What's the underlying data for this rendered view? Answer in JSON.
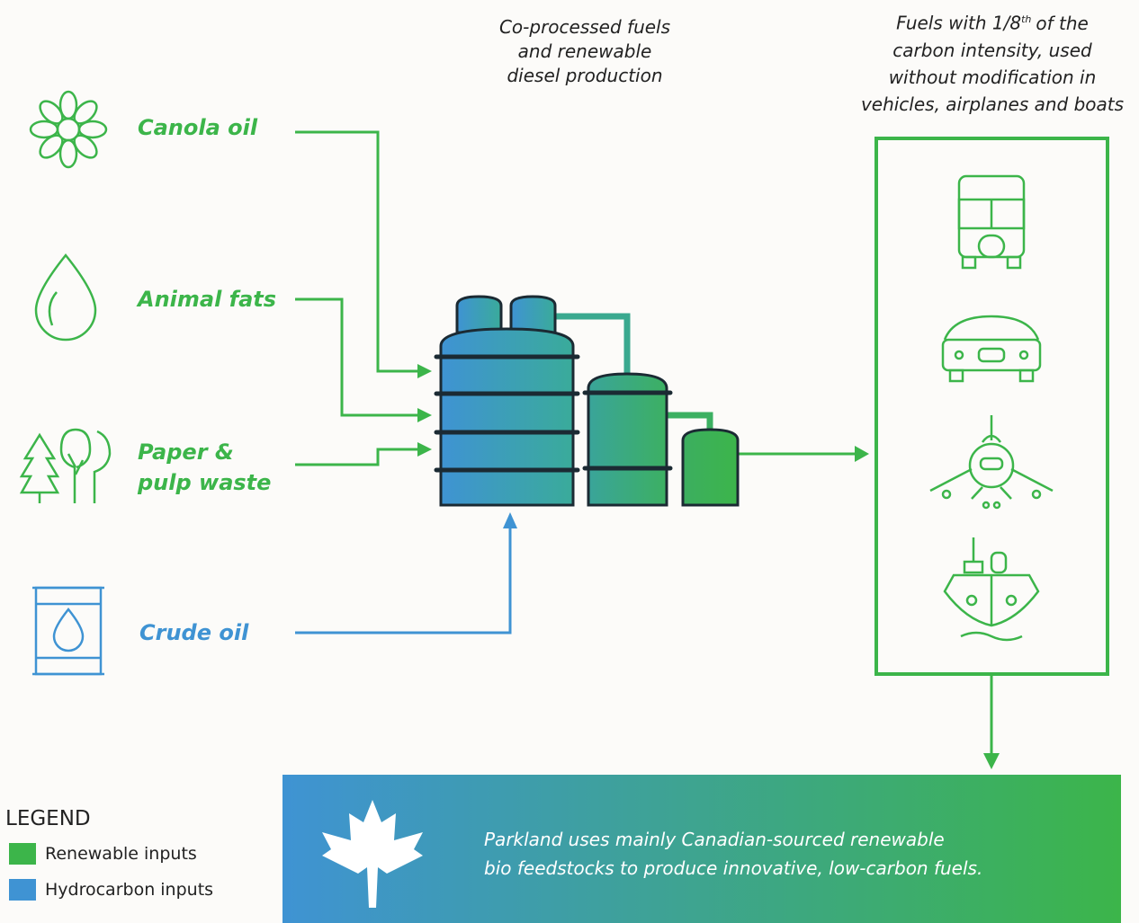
{
  "inputs": [
    {
      "label": [
        "Canola oil"
      ]
    },
    {
      "label": [
        "Animal fats"
      ]
    },
    {
      "label": [
        "Paper &",
        "pulp waste"
      ]
    },
    {
      "label": [
        "Crude oil"
      ]
    }
  ],
  "process_label": [
    "Co-processed fuels",
    "and renewable",
    "diesel production"
  ],
  "output_label": {
    "first_line": [
      "Fuels with 1/8",
      "th",
      "of the"
    ],
    "lines": [
      "carbon intensity, used",
      "without modification in",
      "vehicles, airplanes and boats"
    ]
  },
  "banner": [
    "Parkland uses mainly Canadian-sourced renewable",
    "bio feedstocks to produce innovative, low-carbon fuels."
  ],
  "legend": {
    "title": "LEGEND",
    "items": [
      "Renewable inputs",
      "Hydrocarbon inputs"
    ]
  }
}
